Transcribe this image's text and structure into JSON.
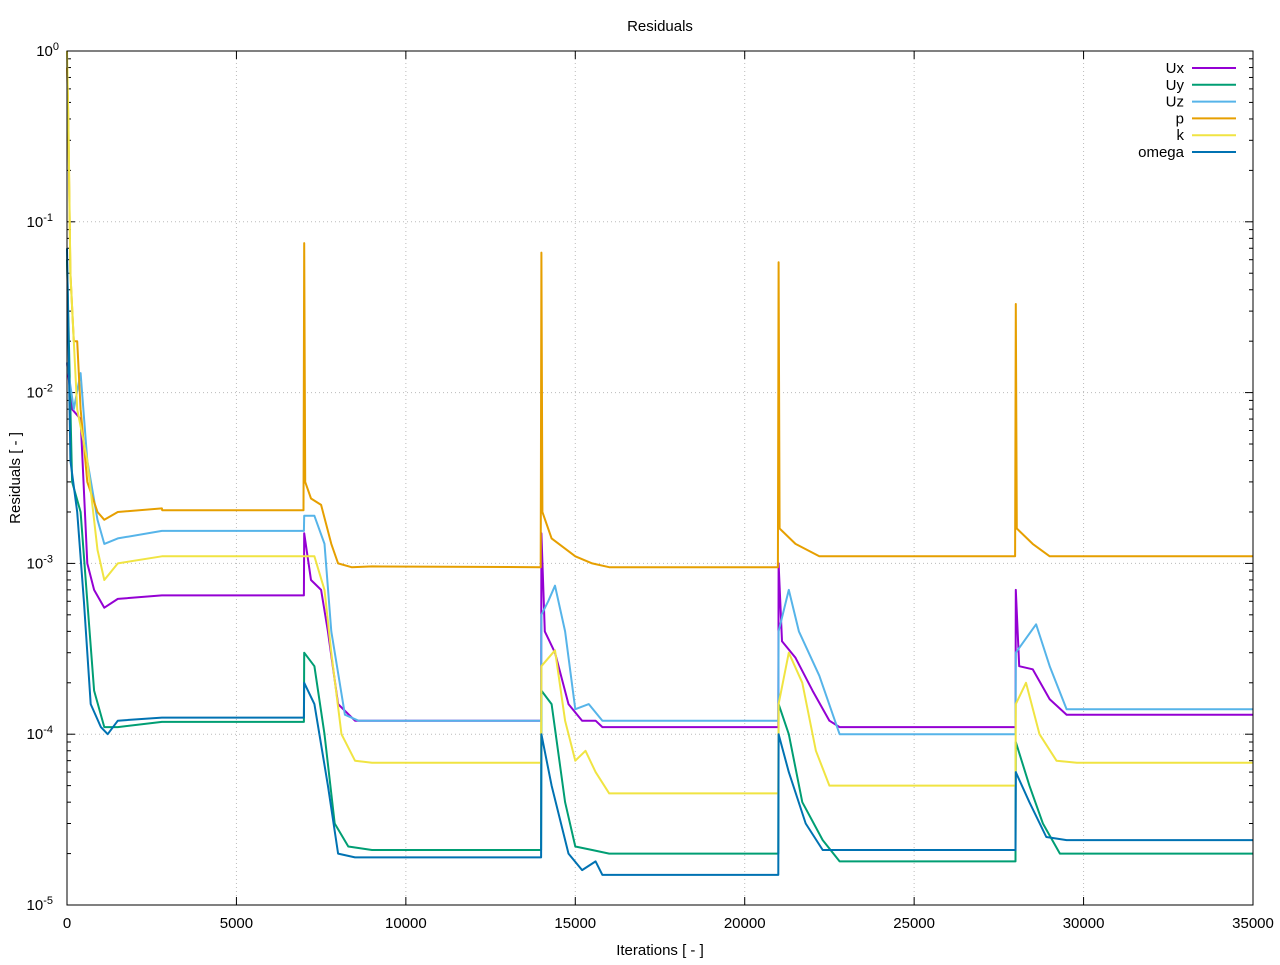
{
  "chart_data": {
    "type": "line",
    "title": "Residuals",
    "xlabel": "Iterations [ - ]",
    "ylabel": "Residuals [ - ]",
    "xlim": [
      0,
      35000
    ],
    "ylim": [
      1e-05,
      1
    ],
    "yscale": "log",
    "grid": true,
    "legend_position": "top-right",
    "xticks": [
      0,
      5000,
      10000,
      15000,
      20000,
      25000,
      30000,
      35000
    ],
    "xtick_labels": [
      "0",
      "5000",
      "10000",
      "15000",
      "20000",
      "25000",
      "30000",
      "35000"
    ],
    "yticks": [
      1,
      0.1,
      0.01,
      0.001,
      0.0001,
      1e-05
    ],
    "ytick_labels": [
      [
        "10",
        "0"
      ],
      [
        "10",
        "-1"
      ],
      [
        "10",
        "-2"
      ],
      [
        "10",
        "-3"
      ],
      [
        "10",
        "-4"
      ],
      [
        "10",
        "-5"
      ]
    ],
    "series": [
      {
        "name": "Ux",
        "color": "#9400d3",
        "points": [
          [
            0,
            0.015
          ],
          [
            150,
            0.008
          ],
          [
            400,
            0.007
          ],
          [
            600,
            0.001
          ],
          [
            800,
            0.0007
          ],
          [
            1100,
            0.00055
          ],
          [
            1500,
            0.00062
          ],
          [
            2800,
            0.00065
          ],
          [
            6990,
            0.00065
          ],
          [
            7000,
            0.0015
          ],
          [
            7200,
            0.0008
          ],
          [
            7500,
            0.0007
          ],
          [
            7700,
            0.0004
          ],
          [
            8000,
            0.00015
          ],
          [
            8500,
            0.00012
          ],
          [
            9000,
            0.00012
          ],
          [
            13990,
            0.00012
          ],
          [
            14000,
            0.0015
          ],
          [
            14100,
            0.0004
          ],
          [
            14400,
            0.0003
          ],
          [
            14800,
            0.00015
          ],
          [
            15200,
            0.00012
          ],
          [
            15600,
            0.00012
          ],
          [
            15800,
            0.00011
          ],
          [
            20990,
            0.00011
          ],
          [
            21000,
            0.001
          ],
          [
            21100,
            0.00035
          ],
          [
            21500,
            0.00028
          ],
          [
            22000,
            0.00018
          ],
          [
            22500,
            0.00012
          ],
          [
            22800,
            0.00011
          ],
          [
            27990,
            0.00011
          ],
          [
            28000,
            0.0007
          ],
          [
            28100,
            0.00025
          ],
          [
            28500,
            0.00024
          ],
          [
            29000,
            0.00016
          ],
          [
            29500,
            0.00013
          ],
          [
            35000,
            0.00013
          ]
        ]
      },
      {
        "name": "Uy",
        "color": "#009e73",
        "points": [
          [
            0,
            0.06
          ],
          [
            150,
            0.003
          ],
          [
            400,
            0.002
          ],
          [
            600,
            0.0006
          ],
          [
            800,
            0.00018
          ],
          [
            1100,
            0.00011
          ],
          [
            1500,
            0.00011
          ],
          [
            2800,
            0.000118
          ],
          [
            6990,
            0.000118
          ],
          [
            7000,
            0.0003
          ],
          [
            7300,
            0.00025
          ],
          [
            7600,
            0.0001
          ],
          [
            7900,
            3e-05
          ],
          [
            8300,
            2.2e-05
          ],
          [
            9000,
            2.1e-05
          ],
          [
            13990,
            2.1e-05
          ],
          [
            14000,
            0.00018
          ],
          [
            14300,
            0.00015
          ],
          [
            14700,
            4e-05
          ],
          [
            15000,
            2.2e-05
          ],
          [
            15500,
            2.1e-05
          ],
          [
            16000,
            2e-05
          ],
          [
            20990,
            2e-05
          ],
          [
            21000,
            0.00015
          ],
          [
            21300,
            0.0001
          ],
          [
            21700,
            4e-05
          ],
          [
            22300,
            2.4e-05
          ],
          [
            22800,
            1.8e-05
          ],
          [
            27990,
            1.8e-05
          ],
          [
            28000,
            9e-05
          ],
          [
            28400,
            5e-05
          ],
          [
            28800,
            3e-05
          ],
          [
            29300,
            2e-05
          ],
          [
            35000,
            2e-05
          ]
        ]
      },
      {
        "name": "Uz",
        "color": "#56b4e9",
        "points": [
          [
            0,
            0.015
          ],
          [
            200,
            0.008
          ],
          [
            400,
            0.013
          ],
          [
            600,
            0.004
          ],
          [
            900,
            0.0018
          ],
          [
            1100,
            0.0013
          ],
          [
            1500,
            0.0014
          ],
          [
            2800,
            0.00155
          ],
          [
            6990,
            0.00155
          ],
          [
            7000,
            0.0019
          ],
          [
            7300,
            0.0019
          ],
          [
            7600,
            0.0013
          ],
          [
            7800,
            0.0004
          ],
          [
            8200,
            0.00013
          ],
          [
            8600,
            0.00012
          ],
          [
            13990,
            0.00012
          ],
          [
            14000,
            0.0005
          ],
          [
            14200,
            0.0006
          ],
          [
            14400,
            0.00074
          ],
          [
            14700,
            0.0004
          ],
          [
            15000,
            0.00014
          ],
          [
            15400,
            0.00015
          ],
          [
            15800,
            0.00012
          ],
          [
            20990,
            0.00012
          ],
          [
            21000,
            0.0004
          ],
          [
            21300,
            0.0007
          ],
          [
            21600,
            0.0004
          ],
          [
            22200,
            0.00022
          ],
          [
            22800,
            0.0001
          ],
          [
            27990,
            0.0001
          ],
          [
            28000,
            0.0003
          ],
          [
            28600,
            0.00044
          ],
          [
            29000,
            0.00025
          ],
          [
            29500,
            0.00014
          ],
          [
            35000,
            0.00014
          ]
        ]
      },
      {
        "name": "p",
        "color": "#e69f00",
        "points": [
          [
            0,
            0.8
          ],
          [
            30,
            0.5
          ],
          [
            100,
            0.05
          ],
          [
            200,
            0.02
          ],
          [
            300,
            0.02
          ],
          [
            400,
            0.008
          ],
          [
            600,
            0.003
          ],
          [
            900,
            0.002
          ],
          [
            1100,
            0.0018
          ],
          [
            1500,
            0.002
          ],
          [
            2800,
            0.0021
          ],
          [
            2810,
            0.00205
          ],
          [
            6980,
            0.00205
          ],
          [
            7000,
            0.075
          ],
          [
            7030,
            0.003
          ],
          [
            7200,
            0.0024
          ],
          [
            7500,
            0.0022
          ],
          [
            7800,
            0.0013
          ],
          [
            8000,
            0.001
          ],
          [
            8400,
            0.00095
          ],
          [
            9000,
            0.00096
          ],
          [
            13980,
            0.00095
          ],
          [
            14000,
            0.066
          ],
          [
            14030,
            0.002
          ],
          [
            14300,
            0.0014
          ],
          [
            15000,
            0.0011
          ],
          [
            15500,
            0.001
          ],
          [
            16000,
            0.00095
          ],
          [
            20980,
            0.00095
          ],
          [
            21000,
            0.058
          ],
          [
            21030,
            0.0016
          ],
          [
            21500,
            0.0013
          ],
          [
            22200,
            0.0011
          ],
          [
            22800,
            0.0011
          ],
          [
            27980,
            0.0011
          ],
          [
            28000,
            0.033
          ],
          [
            28030,
            0.0016
          ],
          [
            28500,
            0.0013
          ],
          [
            29000,
            0.0011
          ],
          [
            29800,
            0.0011
          ],
          [
            35000,
            0.0011
          ]
        ]
      },
      {
        "name": "k",
        "color": "#f0e442",
        "points": [
          [
            0,
            1
          ],
          [
            50,
            0.3
          ],
          [
            100,
            0.05
          ],
          [
            300,
            0.008
          ],
          [
            600,
            0.004
          ],
          [
            900,
            0.0012
          ],
          [
            1100,
            0.0008
          ],
          [
            1500,
            0.001
          ],
          [
            2800,
            0.0011
          ],
          [
            6990,
            0.0011
          ],
          [
            7000,
            0.0011
          ],
          [
            7300,
            0.0011
          ],
          [
            7600,
            0.0007
          ],
          [
            7800,
            0.0003
          ],
          [
            8100,
            0.0001
          ],
          [
            8500,
            7e-05
          ],
          [
            9000,
            6.8e-05
          ],
          [
            13990,
            6.8e-05
          ],
          [
            14000,
            0.00025
          ],
          [
            14400,
            0.00031
          ],
          [
            14700,
            0.00012
          ],
          [
            15000,
            7e-05
          ],
          [
            15300,
            8e-05
          ],
          [
            15600,
            6e-05
          ],
          [
            16000,
            4.5e-05
          ],
          [
            20990,
            4.5e-05
          ],
          [
            21000,
            0.00015
          ],
          [
            21300,
            0.0003
          ],
          [
            21700,
            0.0002
          ],
          [
            22100,
            8e-05
          ],
          [
            22500,
            5e-05
          ],
          [
            22800,
            5e-05
          ],
          [
            27990,
            5e-05
          ],
          [
            28000,
            0.00015
          ],
          [
            28300,
            0.0002
          ],
          [
            28700,
            0.0001
          ],
          [
            29200,
            7e-05
          ],
          [
            29800,
            6.8e-05
          ],
          [
            35000,
            6.8e-05
          ]
        ]
      },
      {
        "name": "omega",
        "color": "#0072b2",
        "points": [
          [
            0,
            0.07
          ],
          [
            100,
            0.004
          ],
          [
            300,
            0.002
          ],
          [
            500,
            0.0006
          ],
          [
            700,
            0.00015
          ],
          [
            1000,
            0.00011
          ],
          [
            1200,
            0.0001
          ],
          [
            1500,
            0.00012
          ],
          [
            2800,
            0.000125
          ],
          [
            6990,
            0.000125
          ],
          [
            7000,
            0.0002
          ],
          [
            7300,
            0.00015
          ],
          [
            7700,
            5e-05
          ],
          [
            8000,
            2e-05
          ],
          [
            8500,
            1.9e-05
          ],
          [
            13990,
            1.9e-05
          ],
          [
            14000,
            0.0001
          ],
          [
            14300,
            5e-05
          ],
          [
            14800,
            2e-05
          ],
          [
            15200,
            1.6e-05
          ],
          [
            15600,
            1.8e-05
          ],
          [
            15800,
            1.5e-05
          ],
          [
            20990,
            1.5e-05
          ],
          [
            21000,
            0.0001
          ],
          [
            21300,
            6e-05
          ],
          [
            21800,
            3e-05
          ],
          [
            22300,
            2.1e-05
          ],
          [
            27990,
            2.1e-05
          ],
          [
            28000,
            6e-05
          ],
          [
            28400,
            4e-05
          ],
          [
            28900,
            2.5e-05
          ],
          [
            29500,
            2.4e-05
          ],
          [
            35000,
            2.4e-05
          ]
        ]
      }
    ]
  }
}
